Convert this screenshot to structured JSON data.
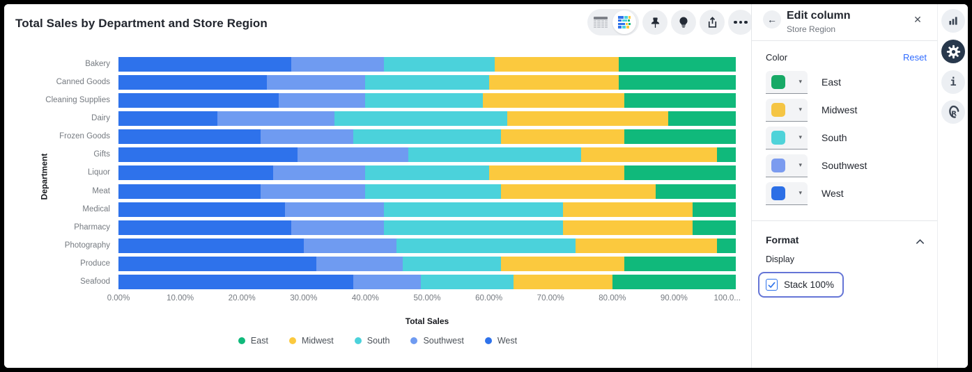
{
  "card": {
    "title": "Total Sales by Department and Store Region",
    "toolbar_icons": [
      "table-view-toggle",
      "chart-view-toggle",
      "pin",
      "lightbulb",
      "share",
      "more-options"
    ]
  },
  "chart_data": {
    "type": "bar",
    "orientation": "horizontal",
    "stacking": "100%",
    "title": "Total Sales by Department and Store Region",
    "xlabel": "Total Sales",
    "ylabel": "Department",
    "xlim": [
      0,
      100
    ],
    "grid": false,
    "legend_position": "bottom",
    "x_ticks": [
      "0.00%",
      "10.00%",
      "20.00%",
      "30.00%",
      "40.00%",
      "50.00%",
      "60.00%",
      "70.00%",
      "80.00%",
      "90.00%",
      "100.0..."
    ],
    "categories": [
      "Bakery",
      "Canned Goods",
      "Cleaning Supplies",
      "Dairy",
      "Frozen Goods",
      "Gifts",
      "Liquor",
      "Meat",
      "Medical",
      "Pharmacy",
      "Photography",
      "Produce",
      "Seafood"
    ],
    "series": [
      {
        "name": "West",
        "color": "#2e72eb",
        "values": [
          28,
          24,
          26,
          16,
          23,
          29,
          25,
          23,
          27,
          28,
          30,
          32,
          38
        ]
      },
      {
        "name": "Southwest",
        "color": "#6f9bf1",
        "values": [
          15,
          16,
          14,
          19,
          15,
          18,
          15,
          17,
          16,
          15,
          15,
          14,
          11
        ]
      },
      {
        "name": "South",
        "color": "#4bd2db",
        "values": [
          18,
          20,
          19,
          28,
          24,
          28,
          20,
          22,
          29,
          29,
          29,
          16,
          15
        ]
      },
      {
        "name": "Midwest",
        "color": "#fbc93e",
        "values": [
          20,
          21,
          23,
          26,
          20,
          22,
          22,
          25,
          21,
          21,
          23,
          20,
          16
        ]
      },
      {
        "name": "East",
        "color": "#10b97b",
        "values": [
          19,
          19,
          18,
          11,
          18,
          3,
          18,
          13,
          7,
          7,
          3,
          18,
          20
        ]
      }
    ],
    "legend": [
      {
        "name": "East",
        "color": "#10b97b"
      },
      {
        "name": "Midwest",
        "color": "#fbc93e"
      },
      {
        "name": "South",
        "color": "#4bd2db"
      },
      {
        "name": "Southwest",
        "color": "#6f9bf1"
      },
      {
        "name": "West",
        "color": "#2e72eb"
      }
    ]
  },
  "panel": {
    "title": "Edit column",
    "subtitle": "Store Region",
    "back_icon": "arrow-left",
    "close_icon": "x",
    "color_section": {
      "label": "Color",
      "reset_label": "Reset",
      "rows": [
        {
          "name": "East",
          "color": "#17a966"
        },
        {
          "name": "Midwest",
          "color": "#f5c544"
        },
        {
          "name": "South",
          "color": "#4fd3d9"
        },
        {
          "name": "Southwest",
          "color": "#7b9bef"
        },
        {
          "name": "West",
          "color": "#2c6fe6"
        }
      ]
    },
    "format_section": {
      "label": "Format",
      "collapse_icon": "chevron-up",
      "display_label": "Display",
      "checkbox_label": "Stack 100%",
      "checked": true
    }
  },
  "right_rail": {
    "icons": [
      "bar-chart",
      "gear",
      "info",
      "r-logo"
    ],
    "active": "gear"
  },
  "colors": {
    "accent_blue": "#2f6bff",
    "focus_ring": "#6575d6",
    "icon_dark": "#232a35"
  }
}
